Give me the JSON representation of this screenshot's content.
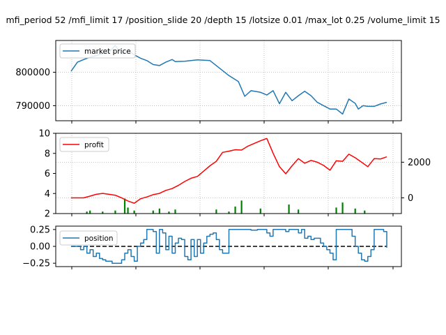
{
  "figure": {
    "title": "mfi_period 52 /mfi_limit 17 /position_slide 20 /depth 15 /lotsize 0.01 /max_lot 0.25 /volume_limit 15"
  },
  "chart_data": [
    {
      "type": "line",
      "panel": "top",
      "title": "",
      "xlabel": "",
      "ylabel": "",
      "ylim": [
        785500,
        809500
      ],
      "yticks": [
        "800000",
        "790000"
      ],
      "grid": true,
      "grid_style": "dotted",
      "legend": "top-left",
      "series": [
        {
          "name": "market price",
          "color": "#1f77b4",
          "x": [
            0,
            2,
            4,
            6,
            8,
            10,
            12,
            14,
            16,
            18,
            20,
            22,
            24,
            26,
            28,
            30,
            32,
            33,
            36,
            40,
            44,
            50,
            53,
            55,
            57,
            60,
            62,
            64,
            66,
            68,
            70,
            72,
            74,
            76,
            78,
            80,
            82,
            84,
            86,
            88,
            90,
            91,
            92.5,
            94,
            96,
            98,
            100
          ],
          "values": [
            800300,
            803000,
            803800,
            804500,
            805000,
            805600,
            806000,
            808000,
            805500,
            806500,
            805200,
            804200,
            803500,
            802300,
            802000,
            803000,
            803800,
            803200,
            803300,
            803700,
            803500,
            799000,
            797200,
            792800,
            794500,
            794000,
            793200,
            794500,
            790600,
            794000,
            791500,
            793000,
            794300,
            793000,
            791000,
            790000,
            789000,
            789000,
            787500,
            792000,
            790700,
            789000,
            790000,
            789800,
            789800,
            790500,
            791000
          ]
        }
      ]
    },
    {
      "type": "line",
      "panel": "middle",
      "title": "",
      "xlabel": "",
      "ylabel": "",
      "ylim": [
        2,
        10
      ],
      "yticks": [
        "2",
        "4",
        "6",
        "8",
        "10"
      ],
      "ylim_right": [
        -880,
        3620
      ],
      "yticks_right": [
        "0",
        "2000"
      ],
      "grid": true,
      "grid_style": "dotted",
      "legend": "top-left",
      "series": [
        {
          "name": "profit",
          "color": "#ff0000",
          "axis": "right",
          "x": [
            0,
            2,
            4,
            6,
            8,
            10,
            12,
            14,
            16,
            18,
            20,
            22,
            24,
            26,
            28,
            30,
            32,
            34,
            36,
            38,
            40,
            42,
            44,
            46,
            48,
            50,
            52,
            54,
            56,
            58,
            60,
            62,
            64,
            66,
            68,
            70,
            72,
            74,
            76,
            78,
            80,
            82,
            84,
            86,
            88,
            90,
            92,
            94,
            96,
            98,
            100
          ],
          "values": [
            0,
            0,
            0,
            100,
            200,
            250,
            200,
            150,
            0,
            -170,
            -300,
            -50,
            50,
            180,
            250,
            420,
            520,
            700,
            920,
            1100,
            1200,
            1500,
            1800,
            2050,
            2550,
            2620,
            2700,
            2680,
            2900,
            3050,
            3200,
            3330,
            2500,
            1750,
            1350,
            1800,
            2200,
            1940,
            2100,
            2000,
            1820,
            1550,
            2080,
            2050,
            2450,
            2250,
            2000,
            1750,
            2200,
            2180,
            2300
          ]
        },
        {
          "name": "",
          "color": "#008000",
          "axis": "left",
          "note_type": "impulses",
          "x": [
            5,
            6,
            10,
            14,
            17,
            18,
            20,
            26,
            28,
            31,
            33,
            46,
            50,
            52,
            54,
            60,
            69,
            72,
            84,
            86,
            90,
            93
          ],
          "values": [
            2.2,
            2.3,
            2.2,
            2.3,
            3.5,
            2.6,
            2.3,
            2.3,
            2.5,
            2.2,
            2.4,
            2.4,
            2.2,
            2.7,
            3.3,
            2.5,
            2.9,
            2.4,
            2.6,
            3.1,
            2.5,
            2.3
          ]
        }
      ]
    },
    {
      "type": "line",
      "panel": "bottom",
      "title": "",
      "xlabel": "",
      "ylabel": "",
      "ylim": [
        -0.3,
        0.3
      ],
      "yticks": [
        "0.25",
        "0.00",
        "−0.25"
      ],
      "grid": false,
      "legend": "top-left",
      "series": [
        {
          "name": "position",
          "color": "#1f77b4",
          "x": [
            0,
            1,
            2,
            3,
            4,
            5,
            6,
            7,
            8,
            9,
            10,
            11,
            12,
            13,
            14,
            15,
            16,
            17,
            18,
            19,
            20,
            21,
            22,
            23,
            24,
            25,
            26,
            27,
            28,
            29,
            30,
            31,
            32,
            33,
            34,
            35,
            36,
            37,
            38,
            39,
            40,
            41,
            42,
            43,
            44,
            45,
            46,
            47,
            48,
            49,
            50,
            51,
            52,
            53,
            54,
            55,
            56,
            57,
            58,
            59,
            60,
            61,
            62,
            63,
            64,
            65,
            66,
            67,
            68,
            69,
            70,
            71,
            72,
            73,
            74,
            75,
            76,
            77,
            78,
            79,
            80,
            81,
            82,
            83,
            84,
            85,
            86,
            87,
            88,
            89,
            90,
            91,
            92,
            93,
            94,
            95,
            96,
            97,
            98,
            99,
            100
          ],
          "values": [
            0,
            0,
            0,
            -0.05,
            0,
            -0.1,
            -0.05,
            -0.15,
            -0.1,
            -0.18,
            -0.2,
            -0.22,
            -0.22,
            -0.25,
            -0.25,
            -0.25,
            -0.2,
            -0.1,
            -0.05,
            -0.15,
            -0.22,
            0,
            0.05,
            0.1,
            0.25,
            0.25,
            0.22,
            -0.1,
            0.25,
            0.2,
            -0.05,
            0.15,
            -0.1,
            0.05,
            0.12,
            0.1,
            -0.15,
            -0.2,
            0.1,
            -0.15,
            0.1,
            -0.1,
            0.05,
            0.15,
            0.18,
            0.2,
            0.1,
            -0.05,
            -0.1,
            -0.1,
            0.25,
            0.25,
            0.25,
            0.25,
            0.25,
            0.25,
            0.25,
            0.24,
            0.24,
            0.25,
            0.25,
            0.25,
            0.2,
            0.15,
            0.25,
            0.25,
            0.25,
            0.25,
            0.22,
            0.25,
            0.25,
            0.25,
            0.2,
            0.25,
            0.12,
            0.15,
            0.1,
            0.12,
            0.12,
            0.05,
            0,
            -0.05,
            -0.1,
            -0.2,
            0.25,
            0.25,
            0.25,
            0.25,
            0.25,
            0.15,
            0,
            -0.1,
            -0.2,
            -0.22,
            -0.15,
            -0.05,
            0.25,
            0.25,
            0.25,
            0.22,
            -0.02
          ]
        },
        {
          "name": "",
          "color": "#000000",
          "dash": "dashed",
          "x": [
            0,
            100
          ],
          "values": [
            0,
            0
          ]
        }
      ]
    }
  ]
}
